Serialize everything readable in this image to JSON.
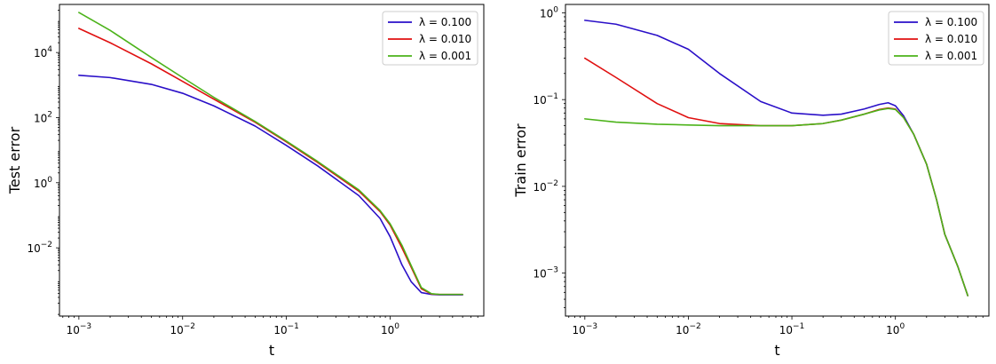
{
  "chart_data": [
    {
      "type": "line",
      "xscale": "log",
      "yscale": "log",
      "xlabel": "t",
      "ylabel": "Test error",
      "xlim": [
        0.00065,
        8.0
      ],
      "ylim": [
        8e-05,
        300000
      ],
      "xticks": [
        {
          "value": 0.001,
          "label": "10",
          "exp": "−3"
        },
        {
          "value": 0.01,
          "label": "10",
          "exp": "−2"
        },
        {
          "value": 0.1,
          "label": "10",
          "exp": "−1"
        },
        {
          "value": 1,
          "label": "10",
          "exp": "0"
        }
      ],
      "yticks": [
        {
          "value": 0.01,
          "label": "10",
          "exp": "−2"
        },
        {
          "value": 1,
          "label": "10",
          "exp": "0"
        },
        {
          "value": 100,
          "label": "10",
          "exp": "2"
        },
        {
          "value": 10000,
          "label": "10",
          "exp": "4"
        }
      ],
      "legend_position": "top-right",
      "series": [
        {
          "name": "λ = 0.100",
          "color": "#2a0fc8",
          "x": [
            0.001,
            0.002,
            0.005,
            0.01,
            0.02,
            0.05,
            0.1,
            0.2,
            0.5,
            0.8,
            1.0,
            1.3,
            1.6,
            2.0,
            2.5,
            3.0,
            4.0,
            5.0
          ],
          "y": [
            2000,
            1700,
            1050,
            560,
            230,
            55,
            14,
            3.3,
            0.4,
            0.08,
            0.022,
            0.003,
            0.0009,
            0.00042,
            0.00037,
            0.00036,
            0.00036,
            0.00036
          ]
        },
        {
          "name": "λ = 0.010",
          "color": "#e01010",
          "x": [
            0.001,
            0.002,
            0.005,
            0.01,
            0.02,
            0.05,
            0.1,
            0.2,
            0.5,
            0.8,
            1.0,
            1.3,
            1.6,
            2.0,
            2.5,
            3.0,
            4.0,
            5.0
          ],
          "y": [
            55000,
            20000,
            4500,
            1300,
            370,
            72,
            18,
            4.2,
            0.55,
            0.13,
            0.05,
            0.01,
            0.0025,
            0.00055,
            0.00038,
            0.00037,
            0.00037,
            0.00037
          ]
        },
        {
          "name": "λ = 0.001",
          "color": "#4cb31a",
          "x": [
            0.001,
            0.002,
            0.005,
            0.01,
            0.02,
            0.05,
            0.1,
            0.2,
            0.5,
            0.8,
            1.0,
            1.3,
            1.6,
            2.0,
            2.5,
            3.0,
            4.0,
            5.0
          ],
          "y": [
            170000,
            48000,
            7000,
            1700,
            420,
            76,
            19,
            4.5,
            0.6,
            0.14,
            0.055,
            0.012,
            0.0028,
            0.0006,
            0.00039,
            0.00037,
            0.00037,
            0.00037
          ]
        }
      ]
    },
    {
      "type": "line",
      "xscale": "log",
      "yscale": "log",
      "xlabel": "t",
      "ylabel": "Train error",
      "xlim": [
        0.00065,
        8.0
      ],
      "ylim": [
        0.00032,
        1.25
      ],
      "xticks": [
        {
          "value": 0.001,
          "label": "10",
          "exp": "−3"
        },
        {
          "value": 0.01,
          "label": "10",
          "exp": "−2"
        },
        {
          "value": 0.1,
          "label": "10",
          "exp": "−1"
        },
        {
          "value": 1,
          "label": "10",
          "exp": "0"
        }
      ],
      "yticks": [
        {
          "value": 0.001,
          "label": "10",
          "exp": "−3"
        },
        {
          "value": 0.01,
          "label": "10",
          "exp": "−2"
        },
        {
          "value": 0.1,
          "label": "10",
          "exp": "−1"
        },
        {
          "value": 1,
          "label": "10",
          "exp": "0"
        }
      ],
      "legend_position": "top-right",
      "series": [
        {
          "name": "λ = 0.100",
          "color": "#2a0fc8",
          "x": [
            0.001,
            0.002,
            0.005,
            0.01,
            0.02,
            0.05,
            0.1,
            0.2,
            0.3,
            0.5,
            0.7,
            0.85,
            1.0,
            1.2,
            1.5,
            2.0,
            2.5,
            3.0,
            4.0,
            5.0
          ],
          "y": [
            0.82,
            0.74,
            0.55,
            0.38,
            0.2,
            0.095,
            0.07,
            0.066,
            0.068,
            0.078,
            0.088,
            0.092,
            0.085,
            0.065,
            0.04,
            0.018,
            0.007,
            0.0028,
            0.0012,
            0.00055
          ]
        },
        {
          "name": "λ = 0.010",
          "color": "#e01010",
          "x": [
            0.001,
            0.002,
            0.005,
            0.01,
            0.02,
            0.05,
            0.1,
            0.2,
            0.3,
            0.5,
            0.7,
            0.85,
            1.0,
            1.2,
            1.5,
            2.0,
            2.5,
            3.0,
            4.0,
            5.0
          ],
          "y": [
            0.3,
            0.18,
            0.09,
            0.062,
            0.053,
            0.05,
            0.05,
            0.053,
            0.058,
            0.068,
            0.077,
            0.08,
            0.078,
            0.062,
            0.04,
            0.018,
            0.007,
            0.0028,
            0.0012,
            0.00055
          ]
        },
        {
          "name": "λ = 0.001",
          "color": "#4cb31a",
          "x": [
            0.001,
            0.002,
            0.005,
            0.01,
            0.02,
            0.05,
            0.1,
            0.2,
            0.3,
            0.5,
            0.7,
            0.85,
            1.0,
            1.2,
            1.5,
            2.0,
            2.5,
            3.0,
            4.0,
            5.0
          ],
          "y": [
            0.06,
            0.055,
            0.052,
            0.051,
            0.05,
            0.05,
            0.05,
            0.053,
            0.058,
            0.068,
            0.076,
            0.079,
            0.077,
            0.062,
            0.04,
            0.018,
            0.007,
            0.0028,
            0.0012,
            0.00055
          ]
        }
      ]
    }
  ]
}
